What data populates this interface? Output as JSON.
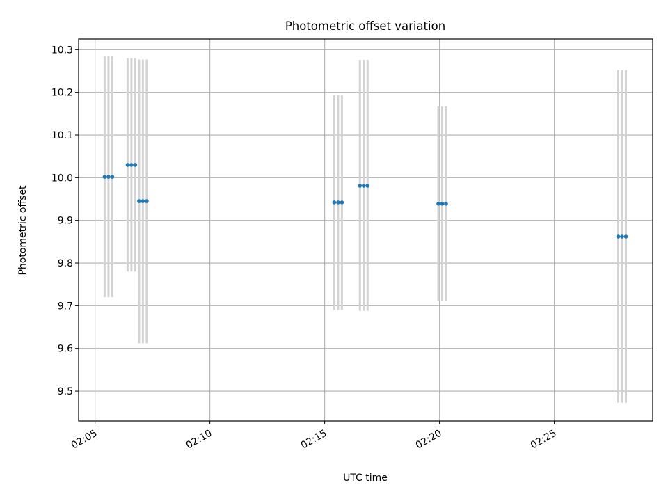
{
  "chart_data": {
    "type": "scatter",
    "title": "Photometric offset variation",
    "xlabel": "UTC time",
    "ylabel": "Photometric offset",
    "xlim": [
      "02:04:17",
      "02:29:17"
    ],
    "ylim": [
      9.43,
      10.325
    ],
    "x_ticks": [
      "02:05",
      "02:10",
      "02:15",
      "02:20",
      "02:25"
    ],
    "y_ticks": [
      "9.5",
      "9.6",
      "9.7",
      "9.8",
      "9.9",
      "10.0",
      "10.1",
      "10.2",
      "10.3"
    ],
    "grid": true,
    "legend": "none",
    "series": [
      {
        "marker_color": "#1f77b4",
        "errorbar_color": "#d3d3d3",
        "points": [
          {
            "x": "02:05:25",
            "y": 10.002,
            "low": 9.72,
            "high": 10.285
          },
          {
            "x": "02:05:35",
            "y": 10.002,
            "low": 9.72,
            "high": 10.285
          },
          {
            "x": "02:05:45",
            "y": 10.002,
            "low": 9.72,
            "high": 10.285
          },
          {
            "x": "02:06:25",
            "y": 10.03,
            "low": 9.78,
            "high": 10.28
          },
          {
            "x": "02:06:35",
            "y": 10.03,
            "low": 9.78,
            "high": 10.28
          },
          {
            "x": "02:06:45",
            "y": 10.03,
            "low": 9.78,
            "high": 10.28
          },
          {
            "x": "02:06:55",
            "y": 9.945,
            "low": 9.612,
            "high": 10.277
          },
          {
            "x": "02:07:05",
            "y": 9.945,
            "low": 9.612,
            "high": 10.277
          },
          {
            "x": "02:07:15",
            "y": 9.945,
            "low": 9.612,
            "high": 10.277
          },
          {
            "x": "02:15:25",
            "y": 9.942,
            "low": 9.69,
            "high": 10.193
          },
          {
            "x": "02:15:35",
            "y": 9.942,
            "low": 9.69,
            "high": 10.193
          },
          {
            "x": "02:15:45",
            "y": 9.942,
            "low": 9.69,
            "high": 10.193
          },
          {
            "x": "02:16:32",
            "y": 9.981,
            "low": 9.688,
            "high": 10.276
          },
          {
            "x": "02:16:42",
            "y": 9.981,
            "low": 9.688,
            "high": 10.276
          },
          {
            "x": "02:16:52",
            "y": 9.981,
            "low": 9.688,
            "high": 10.276
          },
          {
            "x": "02:19:57",
            "y": 9.939,
            "low": 9.712,
            "high": 10.167
          },
          {
            "x": "02:20:07",
            "y": 9.939,
            "low": 9.712,
            "high": 10.167
          },
          {
            "x": "02:20:17",
            "y": 9.939,
            "low": 9.712,
            "high": 10.167
          },
          {
            "x": "02:27:47",
            "y": 9.862,
            "low": 9.473,
            "high": 10.252
          },
          {
            "x": "02:27:57",
            "y": 9.862,
            "low": 9.473,
            "high": 10.252
          },
          {
            "x": "02:28:07",
            "y": 9.862,
            "low": 9.473,
            "high": 10.252
          }
        ]
      }
    ]
  }
}
